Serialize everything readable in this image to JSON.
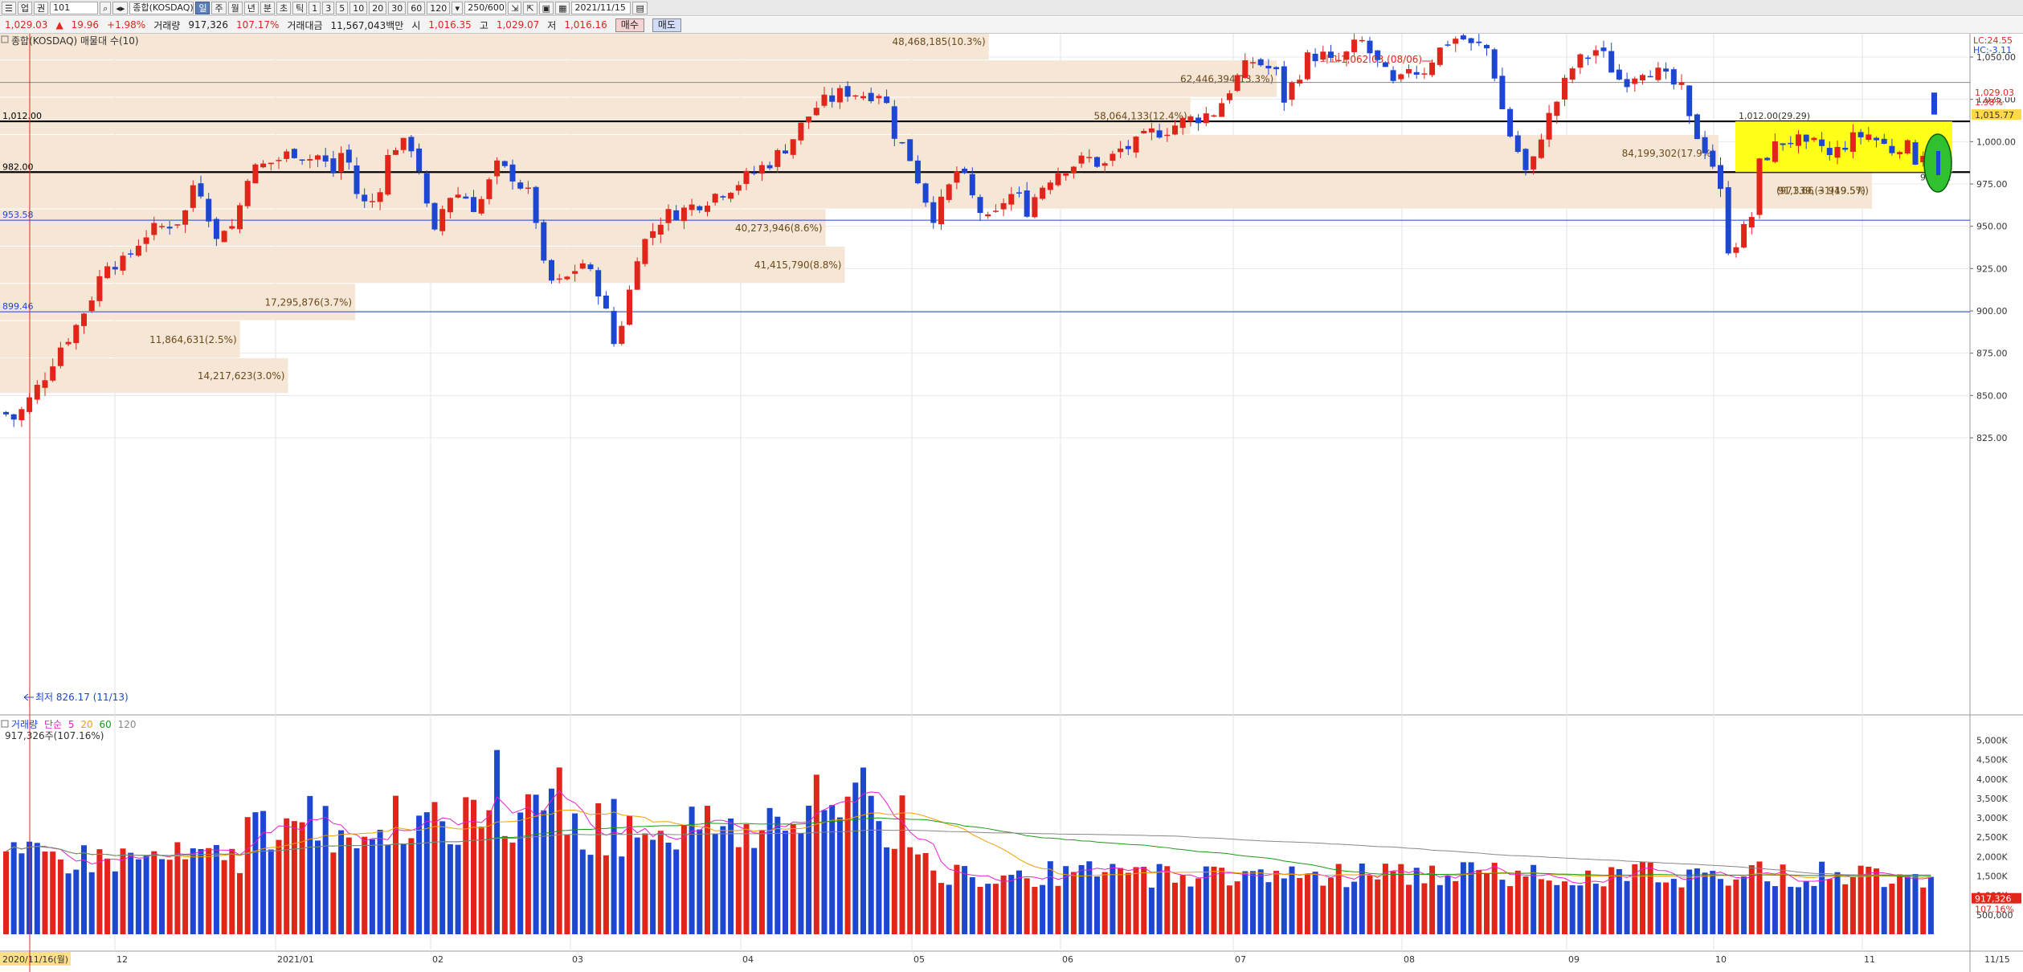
{
  "toolbar": {
    "buttons_left": [
      "업",
      "권",
      "101"
    ],
    "index_name": "종합(KOSDAQ)",
    "period_tabs": [
      "일",
      "주",
      "월",
      "년",
      "분",
      "초",
      "틱"
    ],
    "minute_buttons": [
      "1",
      "3",
      "5",
      "10",
      "20",
      "30",
      "60",
      "120"
    ],
    "count": "250/600",
    "date": "2021/11/15"
  },
  "info": {
    "price": "1,029.03",
    "arrow": "▲",
    "change": "19.96",
    "change_pct": "+1.98%",
    "volume_label": "거래량",
    "volume": "917,326",
    "volume_ratio": "107.17%",
    "amount_label": "거래대금",
    "amount": "11,567,043백만",
    "open_label": "시",
    "open": "1,016.35",
    "high_label": "고",
    "high": "1,029.07",
    "low_label": "저",
    "low": "1,016.16",
    "buy": "매수",
    "sell": "매도"
  },
  "price_panel": {
    "title": "종합(KOSDAQ) 매물대 수(10)",
    "lc": "LC:24.55",
    "hc": "HC:-3.11",
    "current_price_tag": "1,029.03",
    "current_pct_tag": "1.98%",
    "tag_1015": "1,015.77",
    "high_note": "최고 1,062.03 (08/06)",
    "low_note": "최저 826.17 (11/13)",
    "line_1012_label": "1,012.00",
    "line_982_label": "982.00",
    "line_953_label": "953.58",
    "line_899_label": "899.46",
    "box_label": "1,012.00(29.29)",
    "box_low_label": "982.71",
    "range_label": "(971.66 ~ 949.57)",
    "y_ticks": [
      "1,050.00",
      "1,025.00",
      "1,000.00",
      "975.00",
      "950.00",
      "925.00",
      "900.00",
      "875.00",
      "850.00",
      "825.00"
    ],
    "colors": {
      "up": "#e1251b",
      "down": "#1d46d1",
      "profile": "#f5e6d6",
      "box": "#ffff00"
    }
  },
  "volume_profile": [
    {
      "label": "14,217,623(3.0%)",
      "lo": 851,
      "hi": 872,
      "pct": 3.0
    },
    {
      "label": "11,864,631(2.5%)",
      "lo": 872,
      "hi": 894,
      "pct": 2.5
    },
    {
      "label": "17,295,876(3.7%)",
      "lo": 894,
      "hi": 916,
      "pct": 3.7
    },
    {
      "label": "41,415,790(8.8%)",
      "lo": 916,
      "hi": 938,
      "pct": 8.8
    },
    {
      "label": "40,273,946(8.6%)",
      "lo": 938,
      "hi": 960,
      "pct": 8.6
    },
    {
      "label": "91,339,(31(19.5%)",
      "lo": 960,
      "hi": 982,
      "pct": 19.5
    },
    {
      "label": "84,199,302(17.9%)",
      "lo": 982,
      "hi": 1004,
      "pct": 17.9
    },
    {
      "label": "58,064,133(12.4%)",
      "lo": 1004,
      "hi": 1026,
      "pct": 12.4
    },
    {
      "label": "62,446,394(13.3%)",
      "lo": 1026,
      "hi": 1048,
      "pct": 13.3
    },
    {
      "label": "48,468,185(10.3%)",
      "lo": 1048,
      "hi": 1070,
      "pct": 10.3
    }
  ],
  "volume_panel": {
    "legend": [
      "거래량",
      "단순",
      "5",
      "20",
      "60",
      "120"
    ],
    "legend_colors": [
      "#1d46d1",
      "#e81fd0",
      "#e81fd0",
      "#f0a000",
      "#1a9a1a",
      "#888888"
    ],
    "value_label": "917,326주(107.16%)",
    "y_ticks": [
      "5,000K",
      "4,500K",
      "4,000K",
      "3,500K",
      "3,000K",
      "2,500K",
      "2,000K",
      "1,500K",
      "1,000K",
      "500,000"
    ],
    "tag_value": "917,326",
    "tag_pct": "107.16%"
  },
  "x_axis": {
    "start_label": "2020/11/16(월)",
    "months": [
      "12",
      "2021/01",
      "02",
      "03",
      "04",
      "05",
      "06",
      "07",
      "08",
      "09",
      "10",
      "11"
    ],
    "end_label": "11/15"
  },
  "chart_data": {
    "type": "candlestick",
    "title": "종합(KOSDAQ)",
    "ylim": [
      815,
      1075
    ],
    "ylabel": "",
    "levels": [
      1012.0,
      982.0,
      953.58,
      899.46
    ],
    "note": "daily candles approximated from chart shape",
    "series": []
  }
}
